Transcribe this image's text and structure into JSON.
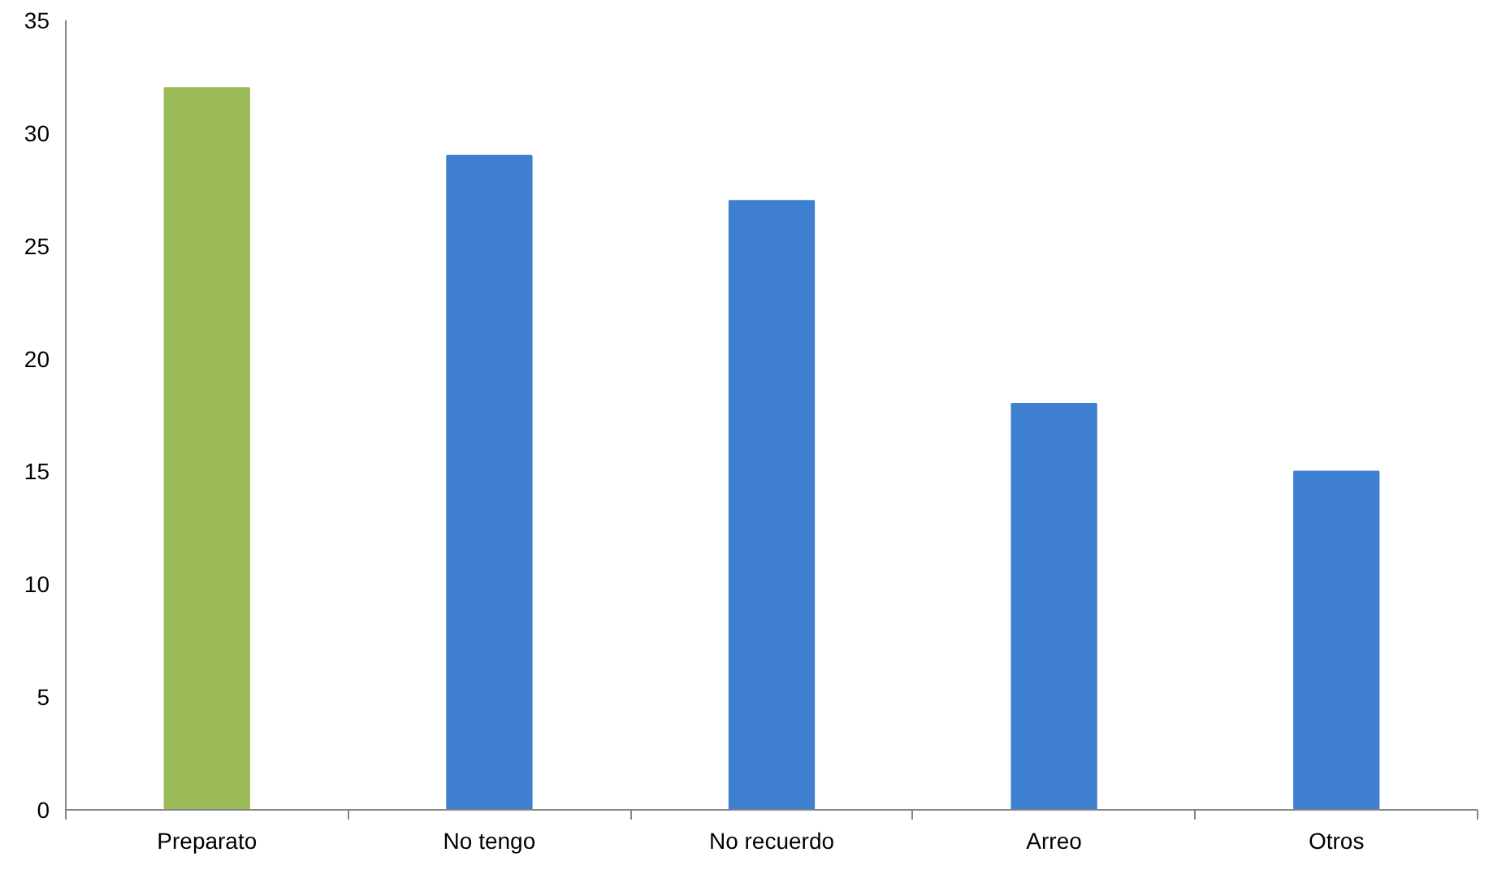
{
  "chart_data": {
    "type": "bar",
    "categories": [
      "Preparato",
      "No tengo",
      "No recuerdo",
      "Arreo",
      "Otros"
    ],
    "values": [
      32,
      29,
      27,
      18,
      15
    ],
    "colors": [
      "#9bbb59",
      "#3f7fcf",
      "#3f7fcf",
      "#3f7fcf",
      "#3f7fcf"
    ],
    "ylim": [
      0,
      35
    ],
    "yticks": [
      0,
      5,
      10,
      15,
      20,
      25,
      30,
      35
    ],
    "grid": false
  }
}
